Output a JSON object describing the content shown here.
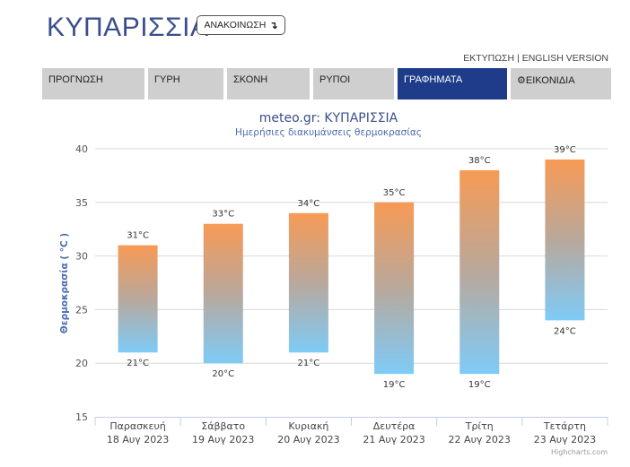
{
  "header": {
    "title": "ΚΥΠΑΡΙΣΣΙΑ",
    "announce_label": "ΑΝΑΚΟΙΝΩΣΗ",
    "announce_icon": "arrow-turn-icon",
    "print_link": "ΕΚΤΥΠΩΣΗ",
    "separator": "|",
    "english_link": "ENGLISH VERSION"
  },
  "nav": {
    "tabs": [
      {
        "label": "ΠΡΟΓΝΩΣΗ",
        "active": false
      },
      {
        "label": "ΓΥΡΗ",
        "active": false
      },
      {
        "label": "ΣΚΟΝΗ",
        "active": false
      },
      {
        "label": "ΡΥΠΟΙ",
        "active": false
      },
      {
        "label": "ΓΡΑΦΗΜΑΤΑ",
        "active": true
      },
      {
        "label": "ΕΙΚΟΝΙΔΙΑ",
        "active": false,
        "icon": "gear-icon"
      }
    ],
    "active_color": "#1e3c8a",
    "inactive_color": "#cfcfcf"
  },
  "chart_data": {
    "type": "bar",
    "subtype": "columnrange",
    "title": "meteo.gr: ΚΥΠΑΡΙΣΣΙΑ",
    "subtitle": "Ημερήσιες διακυμάνσεις θερμοκρασίας",
    "ylabel": "Θερμοκρασία ( °C )",
    "xlabel": "",
    "ylim": [
      15,
      40
    ],
    "yticks": [
      "15",
      "20",
      "25",
      "30",
      "35",
      "40"
    ],
    "grid": true,
    "categories": [
      [
        "Παρασκευή",
        "18 Αυγ 2023"
      ],
      [
        "Σάββατο",
        "19 Αυγ 2023"
      ],
      [
        "Κυριακή",
        "20 Αυγ 2023"
      ],
      [
        "Δευτέρα",
        "21 Αυγ 2023"
      ],
      [
        "Τρίτη",
        "22 Αυγ 2023"
      ],
      [
        "Τετάρτη",
        "23 Αυγ 2023"
      ]
    ],
    "series": [
      {
        "low": [
          21,
          20,
          21,
          19,
          19,
          24
        ],
        "high": [
          31,
          33,
          34,
          35,
          38,
          39
        ]
      }
    ],
    "low_labels": [
      "21°C",
      "20°C",
      "21°C",
      "19°C",
      "19°C",
      "24°C"
    ],
    "high_labels": [
      "31°C",
      "33°C",
      "34°C",
      "35°C",
      "38°C",
      "39°C"
    ],
    "colors": {
      "warm": "#f79a55",
      "cool": "#7ecbf7",
      "title": "#3a4f8c",
      "subtitle": "#4a6cb3"
    },
    "credits": "Highcharts.com"
  }
}
